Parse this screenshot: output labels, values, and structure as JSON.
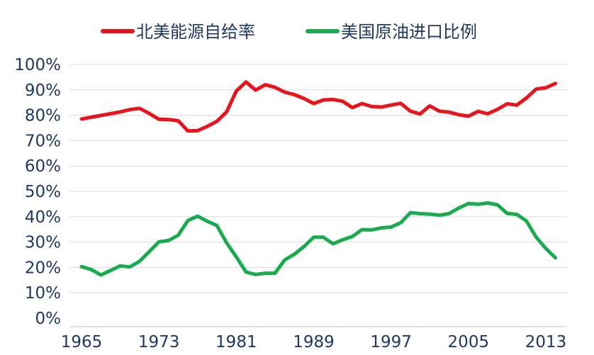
{
  "chart_data": {
    "type": "line",
    "title": "",
    "xlabel": "",
    "ylabel": "",
    "ylim": [
      0,
      100
    ],
    "xlim": [
      1965,
      2014
    ],
    "grid": true,
    "legend_position": "top",
    "x_ticks": [
      1965,
      1973,
      1981,
      1989,
      1997,
      2005,
      2013
    ],
    "y_ticks": [
      "0%",
      "10%",
      "20%",
      "30%",
      "40%",
      "50%",
      "60%",
      "70%",
      "80%",
      "90%",
      "100%"
    ],
    "series": [
      {
        "name": "北美能源自给率",
        "color": "#e8141b",
        "x": [
          1965,
          1966,
          1967,
          1968,
          1969,
          1970,
          1971,
          1972,
          1973,
          1974,
          1975,
          1976,
          1977,
          1978,
          1979,
          1980,
          1981,
          1982,
          1983,
          1984,
          1985,
          1986,
          1987,
          1988,
          1989,
          1990,
          1991,
          1992,
          1993,
          1994,
          1995,
          1996,
          1997,
          1998,
          1999,
          2000,
          2001,
          2002,
          2003,
          2004,
          2005,
          2006,
          2007,
          2008,
          2009,
          2010,
          2011,
          2012,
          2013,
          2014
        ],
        "values": [
          78.5,
          79.2,
          79.9,
          80.6,
          81.3,
          82.2,
          82.7,
          80.7,
          78.4,
          78.3,
          77.8,
          73.8,
          73.9,
          75.6,
          77.6,
          81.3,
          89.5,
          93.1,
          89.9,
          92,
          91,
          89.1,
          88.1,
          86.6,
          84.6,
          86,
          86.2,
          85.5,
          83,
          84.6,
          83.4,
          83.2,
          84,
          84.7,
          81.6,
          80.5,
          83.7,
          81.6,
          81.2,
          80.2,
          79.6,
          81.5,
          80.6,
          82.3,
          84.5,
          84,
          86.8,
          90.3,
          90.8,
          92.5
        ]
      },
      {
        "name": "美国原油进口比例",
        "color": "#1aab4f",
        "x": [
          1965,
          1966,
          1967,
          1968,
          1969,
          1970,
          1971,
          1972,
          1973,
          1974,
          1975,
          1976,
          1977,
          1978,
          1979,
          1980,
          1981,
          1982,
          1983,
          1984,
          1985,
          1986,
          1987,
          1988,
          1989,
          1990,
          1991,
          1992,
          1993,
          1994,
          1995,
          1996,
          1997,
          1998,
          1999,
          2000,
          2001,
          2002,
          2003,
          2004,
          2005,
          2006,
          2007,
          2008,
          2009,
          2010,
          2011,
          2012,
          2013,
          2014
        ],
        "values": [
          20.3,
          19.2,
          17,
          18.8,
          20.6,
          20.2,
          22.4,
          26.2,
          30.1,
          30.6,
          32.7,
          38.5,
          40.2,
          38.2,
          36.5,
          29.7,
          24.2,
          18.2,
          17.2,
          17.7,
          17.7,
          22.9,
          25.2,
          28.2,
          31.9,
          31.9,
          29.3,
          30.9,
          32.2,
          34.9,
          34.8,
          35.6,
          35.9,
          37.6,
          41.6,
          41.2,
          41,
          40.6,
          41.2,
          43.4,
          45.2,
          44.9,
          45.4,
          44.7,
          41.3,
          40.9,
          38.3,
          31.9,
          27.5,
          23.8
        ]
      }
    ]
  }
}
